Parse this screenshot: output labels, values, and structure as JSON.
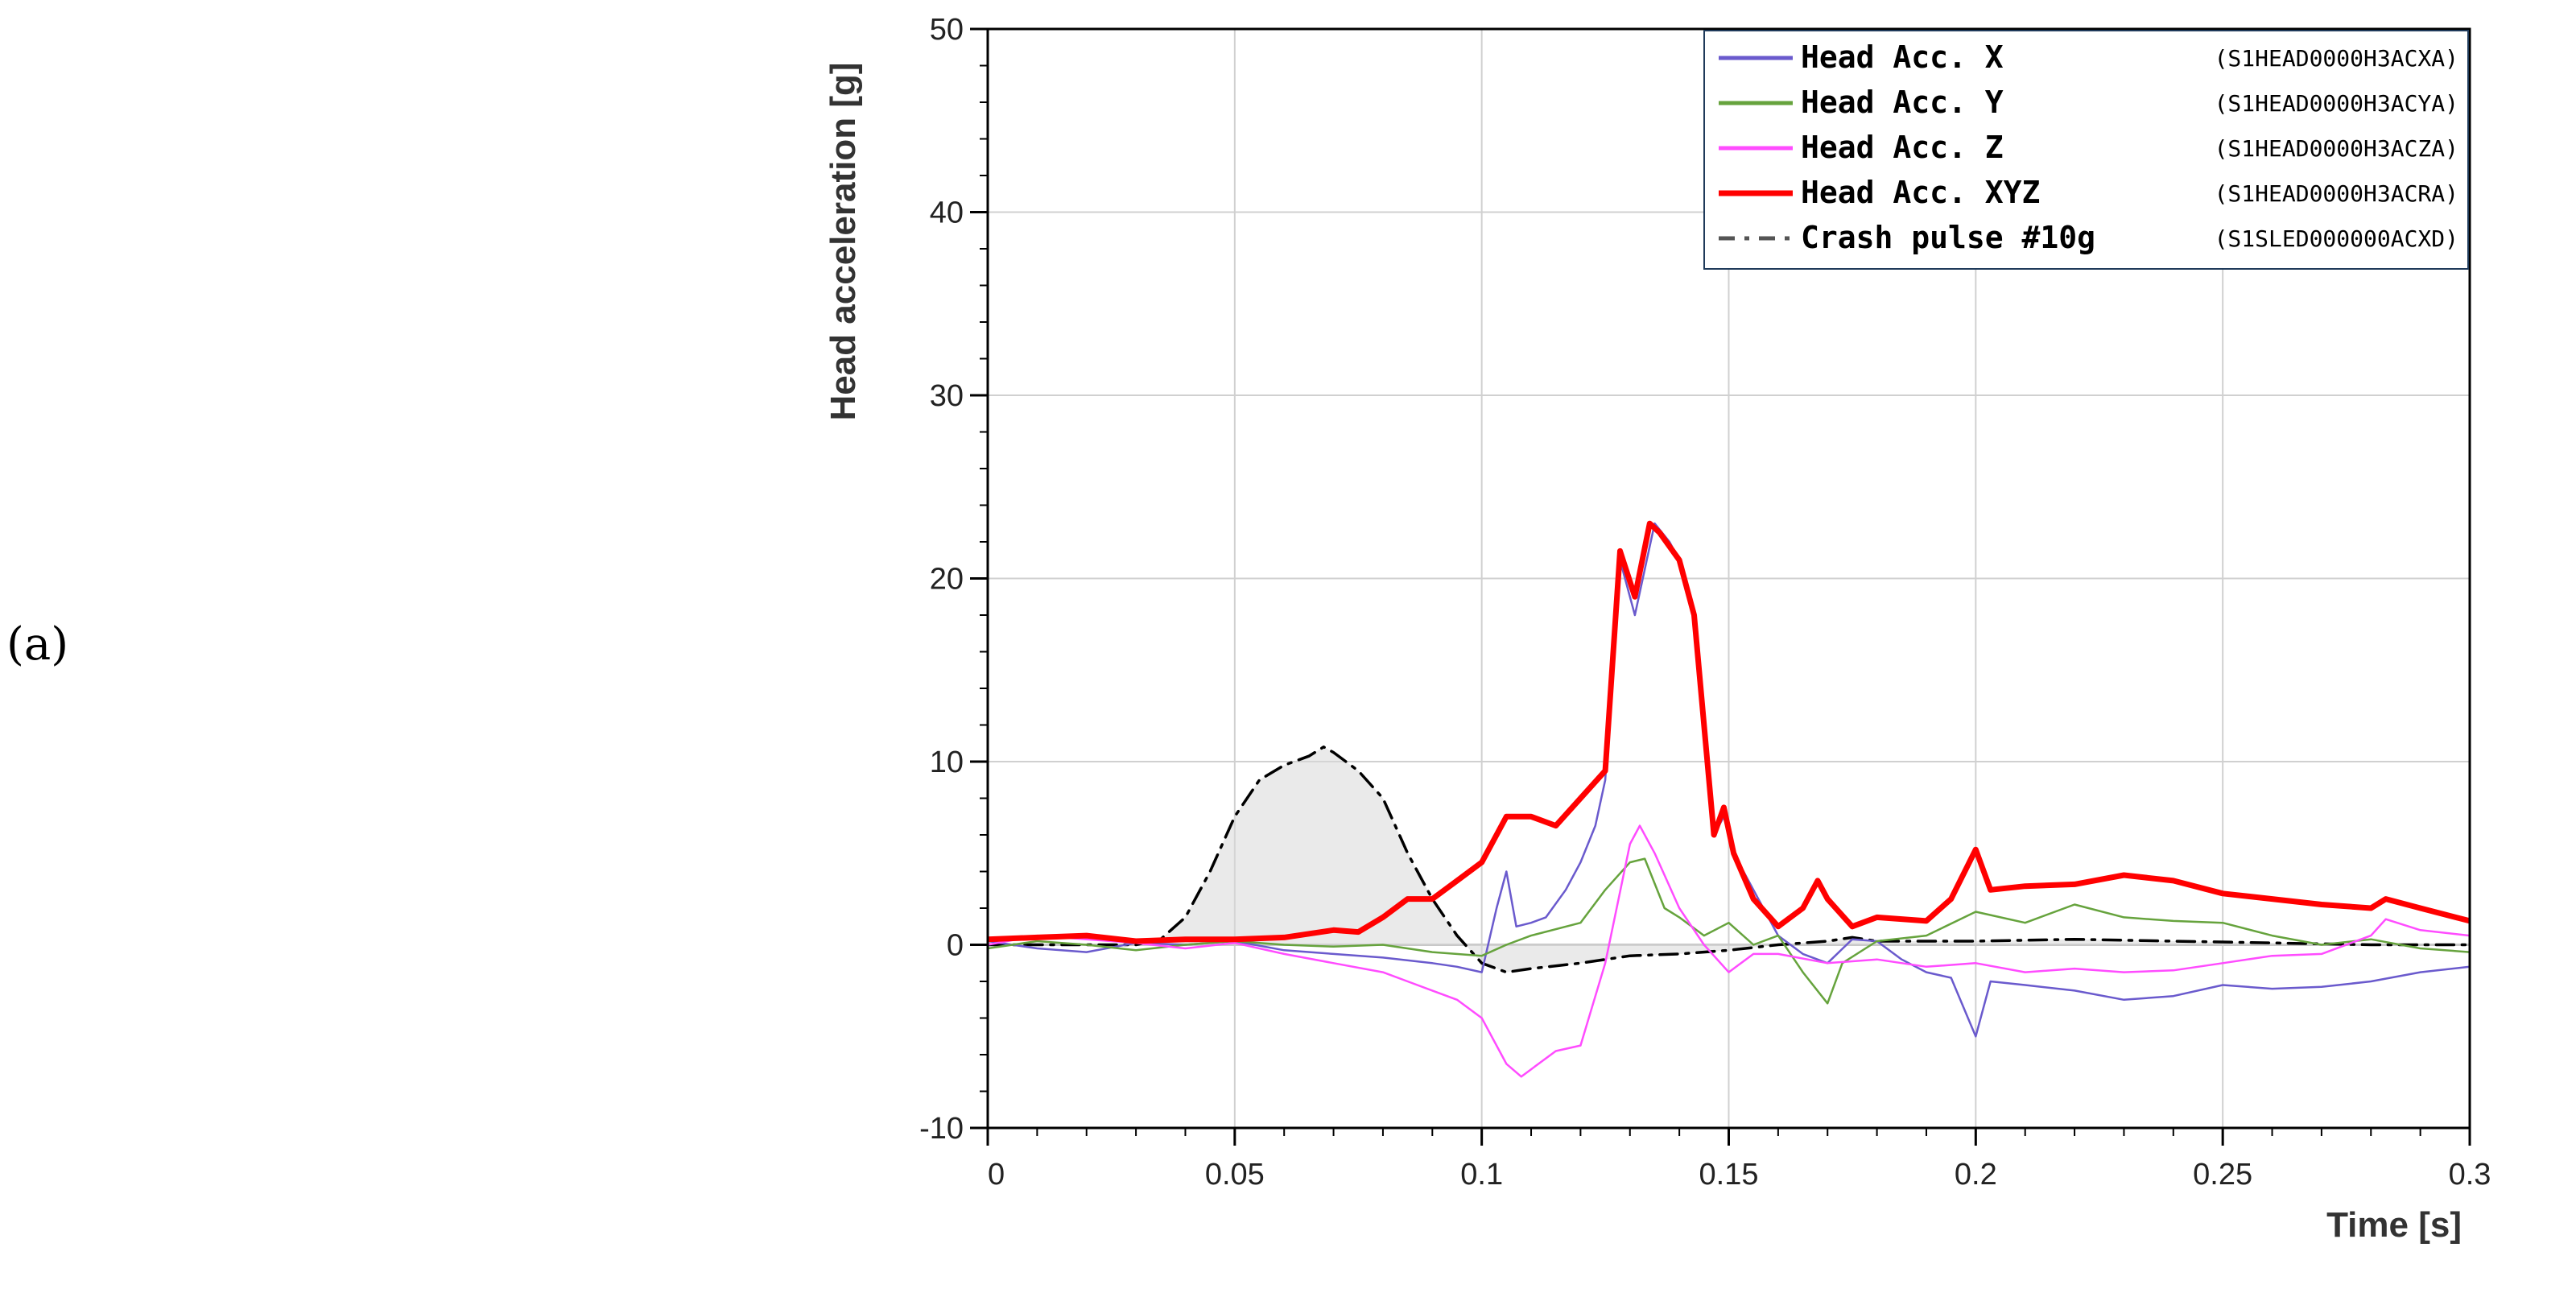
{
  "panel_label": "(a)",
  "chart_data": {
    "type": "line",
    "xlabel": "Time [s]",
    "ylabel": "Head acceleration [g]",
    "xlim": [
      0,
      0.3
    ],
    "ylim": [
      -10,
      50
    ],
    "x_ticks": [
      0,
      0.05,
      0.1,
      0.15,
      0.2,
      0.25,
      0.3
    ],
    "x_tick_labels": [
      "0",
      "0.05",
      "0.1",
      "0.15",
      "0.2",
      "0.25",
      "0.3"
    ],
    "y_ticks": [
      -10,
      0,
      10,
      20,
      30,
      40,
      50
    ],
    "y_tick_labels": [
      "-10",
      "0",
      "10",
      "20",
      "30",
      "40",
      "50"
    ],
    "grid": true,
    "legend_position": "top-right",
    "series": [
      {
        "name": "Head Acc. X",
        "code": "(S1HEAD0000H3ACXA)",
        "color": "#6a5acd",
        "style": "solid",
        "points": [
          [
            0,
            0.2
          ],
          [
            0.01,
            -0.2
          ],
          [
            0.02,
            -0.4
          ],
          [
            0.03,
            0.1
          ],
          [
            0.04,
            0
          ],
          [
            0.05,
            0.2
          ],
          [
            0.06,
            -0.3
          ],
          [
            0.07,
            -0.5
          ],
          [
            0.08,
            -0.7
          ],
          [
            0.09,
            -1
          ],
          [
            0.095,
            -1.2
          ],
          [
            0.1,
            -1.5
          ],
          [
            0.103,
            2
          ],
          [
            0.105,
            4
          ],
          [
            0.107,
            1
          ],
          [
            0.11,
            1.2
          ],
          [
            0.113,
            1.5
          ],
          [
            0.117,
            3
          ],
          [
            0.12,
            4.5
          ],
          [
            0.123,
            6.5
          ],
          [
            0.125,
            9
          ],
          [
            0.128,
            21
          ],
          [
            0.131,
            18
          ],
          [
            0.135,
            23
          ],
          [
            0.138,
            22
          ],
          [
            0.14,
            21
          ],
          [
            0.143,
            18
          ],
          [
            0.145,
            12
          ],
          [
            0.147,
            6
          ],
          [
            0.149,
            7
          ],
          [
            0.151,
            5
          ],
          [
            0.155,
            3
          ],
          [
            0.16,
            0.5
          ],
          [
            0.165,
            -0.5
          ],
          [
            0.17,
            -1
          ],
          [
            0.175,
            0.3
          ],
          [
            0.18,
            0.2
          ],
          [
            0.185,
            -0.8
          ],
          [
            0.19,
            -1.5
          ],
          [
            0.195,
            -1.8
          ],
          [
            0.2,
            -5
          ],
          [
            0.203,
            -2
          ],
          [
            0.21,
            -2.2
          ],
          [
            0.22,
            -2.5
          ],
          [
            0.23,
            -3
          ],
          [
            0.24,
            -2.8
          ],
          [
            0.25,
            -2.2
          ],
          [
            0.26,
            -2.4
          ],
          [
            0.27,
            -2.3
          ],
          [
            0.28,
            -2
          ],
          [
            0.29,
            -1.5
          ],
          [
            0.3,
            -1.2
          ]
        ]
      },
      {
        "name": "Head Acc. Y",
        "code": "(S1HEAD0000H3ACYA)",
        "color": "#66a33d",
        "style": "solid",
        "points": [
          [
            0,
            -0.2
          ],
          [
            0.01,
            0.2
          ],
          [
            0.02,
            0
          ],
          [
            0.03,
            -0.3
          ],
          [
            0.04,
            0
          ],
          [
            0.05,
            0.2
          ],
          [
            0.06,
            0
          ],
          [
            0.07,
            -0.1
          ],
          [
            0.08,
            0
          ],
          [
            0.09,
            -0.4
          ],
          [
            0.1,
            -0.6
          ],
          [
            0.105,
            0
          ],
          [
            0.11,
            0.5
          ],
          [
            0.12,
            1.2
          ],
          [
            0.125,
            3
          ],
          [
            0.13,
            4.5
          ],
          [
            0.133,
            4.7
          ],
          [
            0.137,
            2
          ],
          [
            0.14,
            1.5
          ],
          [
            0.145,
            0.5
          ],
          [
            0.15,
            1.2
          ],
          [
            0.155,
            0
          ],
          [
            0.16,
            0.5
          ],
          [
            0.165,
            -1.5
          ],
          [
            0.17,
            -3.2
          ],
          [
            0.173,
            -1
          ],
          [
            0.18,
            0.2
          ],
          [
            0.19,
            0.5
          ],
          [
            0.2,
            1.8
          ],
          [
            0.21,
            1.2
          ],
          [
            0.22,
            2.2
          ],
          [
            0.23,
            1.5
          ],
          [
            0.24,
            1.3
          ],
          [
            0.25,
            1.2
          ],
          [
            0.26,
            0.5
          ],
          [
            0.27,
            0
          ],
          [
            0.28,
            0.3
          ],
          [
            0.29,
            -0.2
          ],
          [
            0.3,
            -0.4
          ]
        ]
      },
      {
        "name": "Head Acc. Z",
        "code": "(S1HEAD0000H3ACZA)",
        "color": "#ff4cff",
        "style": "solid",
        "points": [
          [
            0,
            0
          ],
          [
            0.01,
            0.5
          ],
          [
            0.02,
            0.3
          ],
          [
            0.03,
            0.1
          ],
          [
            0.04,
            -0.2
          ],
          [
            0.05,
            0.1
          ],
          [
            0.06,
            -0.5
          ],
          [
            0.07,
            -1
          ],
          [
            0.08,
            -1.5
          ],
          [
            0.085,
            -2
          ],
          [
            0.09,
            -2.5
          ],
          [
            0.095,
            -3
          ],
          [
            0.1,
            -4
          ],
          [
            0.105,
            -6.5
          ],
          [
            0.108,
            -7.2
          ],
          [
            0.11,
            -6.8
          ],
          [
            0.115,
            -5.8
          ],
          [
            0.12,
            -5.5
          ],
          [
            0.125,
            -1
          ],
          [
            0.13,
            5.5
          ],
          [
            0.132,
            6.5
          ],
          [
            0.135,
            5
          ],
          [
            0.14,
            2
          ],
          [
            0.145,
            0
          ],
          [
            0.15,
            -1.5
          ],
          [
            0.155,
            -0.5
          ],
          [
            0.16,
            -0.5
          ],
          [
            0.17,
            -1
          ],
          [
            0.18,
            -0.8
          ],
          [
            0.19,
            -1.2
          ],
          [
            0.2,
            -1
          ],
          [
            0.21,
            -1.5
          ],
          [
            0.22,
            -1.3
          ],
          [
            0.23,
            -1.5
          ],
          [
            0.24,
            -1.4
          ],
          [
            0.25,
            -1
          ],
          [
            0.26,
            -0.6
          ],
          [
            0.27,
            -0.5
          ],
          [
            0.28,
            0.5
          ],
          [
            0.283,
            1.4
          ],
          [
            0.29,
            0.8
          ],
          [
            0.3,
            0.5
          ]
        ]
      },
      {
        "name": "Head Acc. XYZ",
        "code": "(S1HEAD0000H3ACRA)",
        "color": "#ff0000",
        "style": "solid-thick",
        "points": [
          [
            0,
            0.3
          ],
          [
            0.01,
            0.4
          ],
          [
            0.02,
            0.5
          ],
          [
            0.03,
            0.2
          ],
          [
            0.04,
            0.3
          ],
          [
            0.05,
            0.3
          ],
          [
            0.06,
            0.4
          ],
          [
            0.07,
            0.8
          ],
          [
            0.075,
            0.7
          ],
          [
            0.08,
            1.5
          ],
          [
            0.085,
            2.5
          ],
          [
            0.09,
            2.5
          ],
          [
            0.095,
            3.5
          ],
          [
            0.1,
            4.5
          ],
          [
            0.105,
            7
          ],
          [
            0.11,
            7
          ],
          [
            0.115,
            6.5
          ],
          [
            0.12,
            8
          ],
          [
            0.125,
            9.5
          ],
          [
            0.128,
            21.5
          ],
          [
            0.131,
            19
          ],
          [
            0.134,
            23
          ],
          [
            0.136,
            22.5
          ],
          [
            0.14,
            21
          ],
          [
            0.143,
            18
          ],
          [
            0.145,
            12
          ],
          [
            0.147,
            6
          ],
          [
            0.149,
            7.5
          ],
          [
            0.151,
            5
          ],
          [
            0.155,
            2.5
          ],
          [
            0.16,
            1
          ],
          [
            0.165,
            2
          ],
          [
            0.168,
            3.5
          ],
          [
            0.17,
            2.5
          ],
          [
            0.175,
            1
          ],
          [
            0.18,
            1.5
          ],
          [
            0.19,
            1.3
          ],
          [
            0.195,
            2.5
          ],
          [
            0.2,
            5.2
          ],
          [
            0.203,
            3
          ],
          [
            0.21,
            3.2
          ],
          [
            0.22,
            3.3
          ],
          [
            0.23,
            3.8
          ],
          [
            0.24,
            3.5
          ],
          [
            0.25,
            2.8
          ],
          [
            0.26,
            2.5
          ],
          [
            0.27,
            2.2
          ],
          [
            0.28,
            2
          ],
          [
            0.283,
            2.5
          ],
          [
            0.29,
            2
          ],
          [
            0.3,
            1.3
          ]
        ]
      },
      {
        "name": "Crash pulse #10g",
        "code": "(S1SLED000000ACXD)",
        "color": "#555555",
        "style": "dash-dot",
        "points": [
          [
            0,
            0
          ],
          [
            0.03,
            0
          ],
          [
            0.035,
            0.3
          ],
          [
            0.04,
            1.5
          ],
          [
            0.045,
            4
          ],
          [
            0.05,
            7
          ],
          [
            0.055,
            9
          ],
          [
            0.06,
            9.8
          ],
          [
            0.065,
            10.3
          ],
          [
            0.068,
            10.8
          ],
          [
            0.07,
            10.5
          ],
          [
            0.075,
            9.5
          ],
          [
            0.08,
            8
          ],
          [
            0.085,
            5
          ],
          [
            0.09,
            2.5
          ],
          [
            0.095,
            0.5
          ],
          [
            0.1,
            -1
          ],
          [
            0.105,
            -1.5
          ],
          [
            0.11,
            -1.3
          ],
          [
            0.12,
            -1
          ],
          [
            0.13,
            -0.6
          ],
          [
            0.14,
            -0.5
          ],
          [
            0.15,
            -0.3
          ],
          [
            0.16,
            0
          ],
          [
            0.17,
            0.2
          ],
          [
            0.175,
            0.4
          ],
          [
            0.18,
            0.2
          ],
          [
            0.2,
            0.2
          ],
          [
            0.22,
            0.3
          ],
          [
            0.24,
            0.2
          ],
          [
            0.26,
            0.1
          ],
          [
            0.28,
            0
          ],
          [
            0.3,
            0
          ]
        ]
      }
    ]
  }
}
